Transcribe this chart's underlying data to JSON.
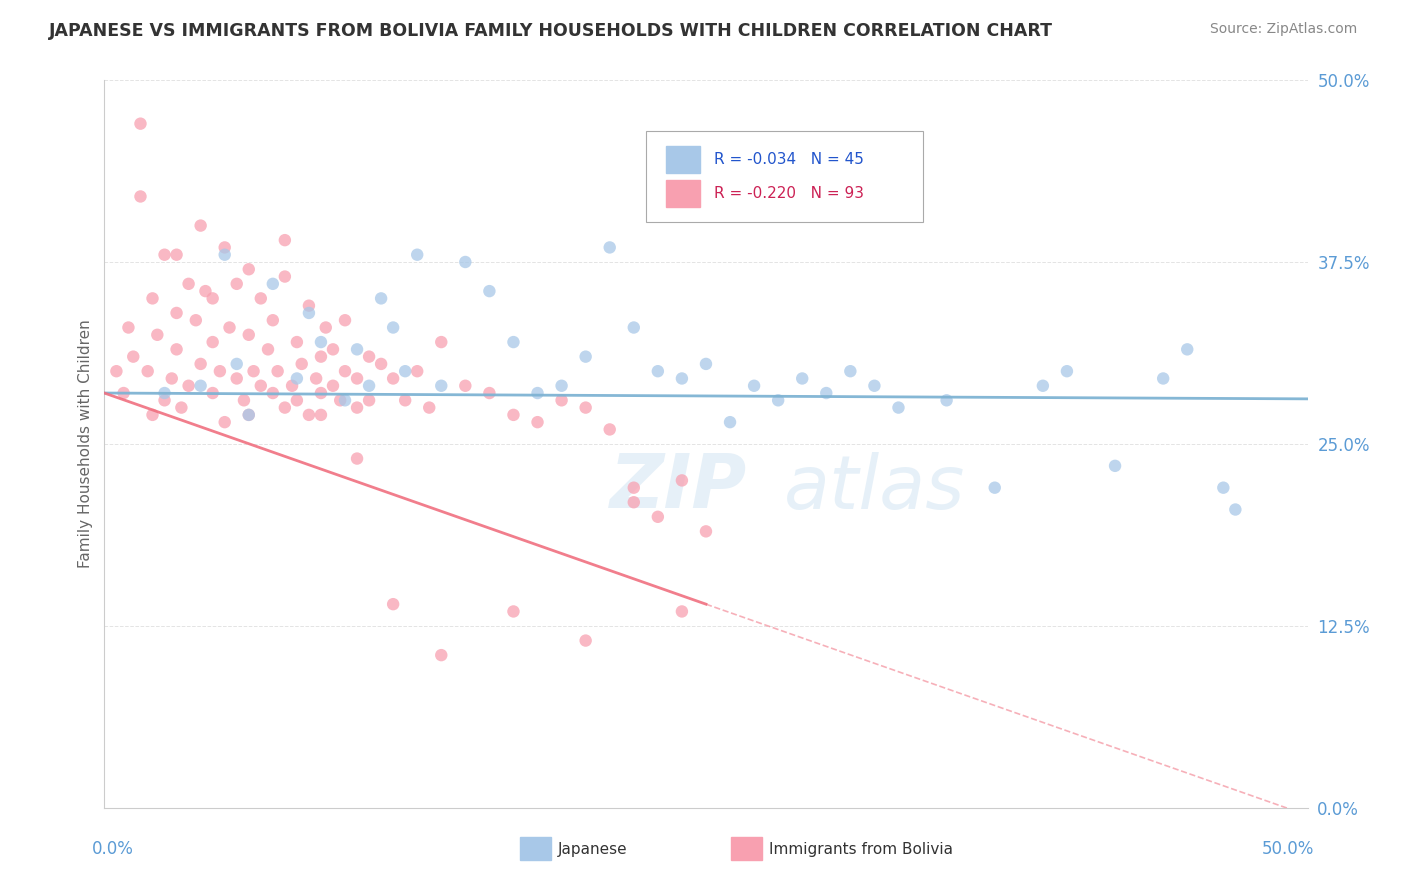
{
  "title": "JAPANESE VS IMMIGRANTS FROM BOLIVIA FAMILY HOUSEHOLDS WITH CHILDREN CORRELATION CHART",
  "source": "Source: ZipAtlas.com",
  "ylabel": "Family Households with Children",
  "ytick_labels": [
    "0.0%",
    "12.5%",
    "25.0%",
    "37.5%",
    "50.0%"
  ],
  "ytick_values": [
    0,
    12.5,
    25.0,
    37.5,
    50.0
  ],
  "xlim": [
    0,
    50
  ],
  "ylim": [
    0,
    50
  ],
  "watermark": "ZIPatlas",
  "japanese_color": "#7fb3d3",
  "bolivia_color": "#f07080",
  "japanese_dot_color": "#a8c8e8",
  "bolivia_dot_color": "#f8a0b0",
  "japanese_R": -0.034,
  "japanese_N": 45,
  "bolivia_R": -0.22,
  "bolivia_N": 93,
  "background_color": "#ffffff",
  "grid_color": "#dddddd",
  "title_color": "#333333",
  "tick_label_color": "#5b9bd5",
  "legend_text_blue": "#2255cc",
  "legend_text_pink": "#cc2255",
  "bolivia_data_max_x": 25.0,
  "japanese_line_intercept": 28.5,
  "japanese_line_slope": -0.008,
  "bolivia_line_intercept": 28.5,
  "bolivia_line_slope": -0.58
}
